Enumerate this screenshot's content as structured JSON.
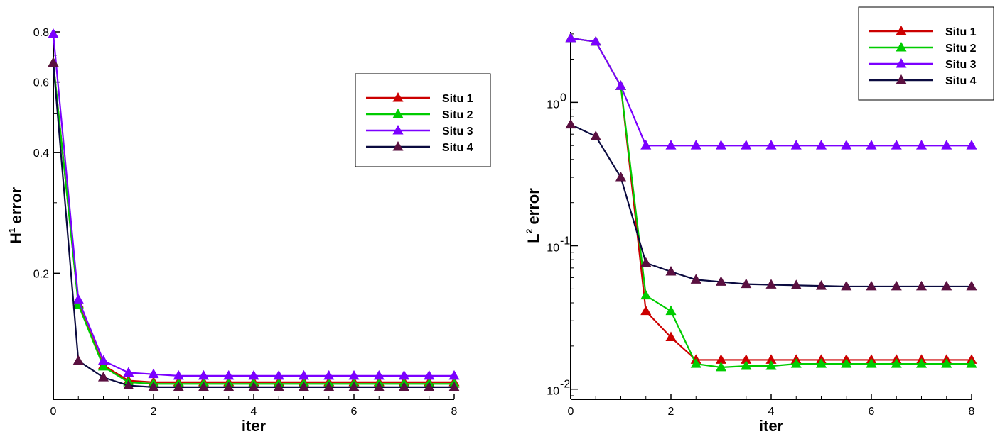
{
  "chart_data": [
    {
      "type": "line",
      "xlabel": "iter",
      "ylabel": "H¹ error",
      "ylabel_base": "H",
      "ylabel_sup": "1",
      "ylabel_rest": " error",
      "yscale": "log",
      "xlim": [
        0,
        8
      ],
      "ylim": [
        0.097,
        0.8
      ],
      "xticks": [
        0,
        2,
        4,
        6,
        8
      ],
      "yticks": [
        {
          "value": 0.2,
          "label": "0.2"
        },
        {
          "value": 0.4,
          "label": "0.4"
        },
        {
          "value": 0.6,
          "label": "0.6"
        },
        {
          "value": 0.8,
          "label": "0.8"
        }
      ],
      "legend_placement": "top-right",
      "x": [
        0,
        0.5,
        1,
        1.5,
        2,
        2.5,
        3,
        3.5,
        4,
        4.5,
        5,
        5.5,
        6,
        6.5,
        7,
        7.5,
        8
      ],
      "series": [
        {
          "name": "Situ 1",
          "color": "#cc0000",
          "values": [
            0.67,
            0.168,
            0.118,
            0.108,
            0.107,
            0.107,
            0.107,
            0.107,
            0.107,
            0.107,
            0.107,
            0.107,
            0.107,
            0.107,
            0.107,
            0.107,
            0.107
          ]
        },
        {
          "name": "Situ 2",
          "color": "#00cc00",
          "values": [
            0.67,
            0.167,
            0.117,
            0.107,
            0.106,
            0.106,
            0.106,
            0.106,
            0.106,
            0.106,
            0.106,
            0.106,
            0.106,
            0.106,
            0.106,
            0.106,
            0.106
          ]
        },
        {
          "name": "Situ 3",
          "color": "#7b00ff",
          "values": [
            0.79,
            0.172,
            0.121,
            0.113,
            0.112,
            0.111,
            0.111,
            0.111,
            0.111,
            0.111,
            0.111,
            0.111,
            0.111,
            0.111,
            0.111,
            0.111,
            0.111
          ]
        },
        {
          "name": "Situ 4",
          "color": "#0a0a3f",
          "marker_color": "#5a1040",
          "values": [
            0.67,
            0.121,
            0.11,
            0.105,
            0.104,
            0.104,
            0.104,
            0.104,
            0.104,
            0.104,
            0.104,
            0.104,
            0.104,
            0.104,
            0.104,
            0.104,
            0.104
          ]
        }
      ]
    },
    {
      "type": "line",
      "xlabel": "iter",
      "ylabel": "L² error",
      "ylabel_base": "L",
      "ylabel_sup": "2",
      "ylabel_rest": " error",
      "yscale": "log",
      "xlim": [
        0,
        8
      ],
      "ylim": [
        0.0085,
        3.1
      ],
      "xticks": [
        0,
        2,
        4,
        6,
        8
      ],
      "yticks": [
        {
          "value": 0.01,
          "base": "10",
          "exp": "-2"
        },
        {
          "value": 0.1,
          "base": "10",
          "exp": "-1"
        },
        {
          "value": 1,
          "base": "10",
          "exp": "0"
        }
      ],
      "legend_placement": "top-right",
      "x": [
        0,
        0.5,
        1,
        1.5,
        2,
        2.5,
        3,
        3.5,
        4,
        4.5,
        5,
        5.5,
        6,
        6.5,
        7,
        7.5,
        8
      ],
      "series": [
        {
          "name": "Situ 1",
          "color": "#cc0000",
          "values": [
            2.8,
            2.65,
            1.3,
            0.035,
            0.023,
            0.016,
            0.016,
            0.016,
            0.016,
            0.016,
            0.016,
            0.016,
            0.016,
            0.016,
            0.016,
            0.016,
            0.016
          ]
        },
        {
          "name": "Situ 2",
          "color": "#00cc00",
          "values": [
            2.8,
            2.65,
            1.3,
            0.045,
            0.035,
            0.015,
            0.0142,
            0.0145,
            0.0145,
            0.015,
            0.015,
            0.015,
            0.015,
            0.015,
            0.015,
            0.015,
            0.015
          ]
        },
        {
          "name": "Situ 3",
          "color": "#7b00ff",
          "values": [
            2.8,
            2.65,
            1.3,
            0.5,
            0.5,
            0.5,
            0.5,
            0.5,
            0.5,
            0.5,
            0.5,
            0.5,
            0.5,
            0.5,
            0.5,
            0.5,
            0.5
          ]
        },
        {
          "name": "Situ 4",
          "color": "#0a0a3f",
          "marker_color": "#5a1040",
          "values": [
            0.7,
            0.58,
            0.3,
            0.076,
            0.066,
            0.058,
            0.056,
            0.054,
            0.0535,
            0.053,
            0.0525,
            0.052,
            0.052,
            0.052,
            0.052,
            0.052,
            0.052
          ]
        }
      ]
    }
  ]
}
